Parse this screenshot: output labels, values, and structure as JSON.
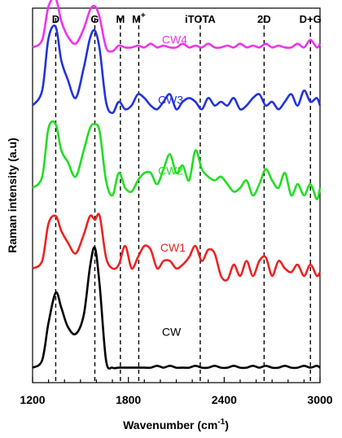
{
  "chart_data": {
    "type": "line",
    "xlabel": "Wavenumber (cm",
    "xlabel_sup": "-1",
    "xlabel_end": ")",
    "ylabel": "Raman intensity (a.u)",
    "xlim": [
      1200,
      3000
    ],
    "xticks": [
      1200,
      1800,
      2400,
      3000
    ],
    "xtick_labels": [
      "1200",
      "1800",
      "2400",
      "3000"
    ],
    "x_minor_step": 100,
    "stacked_offset": true,
    "y_ticks_shown": false,
    "peak_markers": [
      {
        "label": "D",
        "sup": "",
        "x": 1345,
        "bold": true
      },
      {
        "label": "G",
        "sup": "",
        "x": 1590,
        "bold": true
      },
      {
        "label": "M",
        "sup": "",
        "x": 1750,
        "bold": false
      },
      {
        "label": "M",
        "sup": "+",
        "x": 1865,
        "bold": true
      },
      {
        "label": "iTOTA",
        "sup": "",
        "x": 2250,
        "bold": true
      },
      {
        "label": "2D",
        "sup": "",
        "x": 2650,
        "bold": true
      },
      {
        "label": "D+G",
        "sup": "",
        "x": 2940,
        "bold": true
      }
    ],
    "x": [
      1200,
      1260,
      1300,
      1345,
      1380,
      1420,
      1470,
      1520,
      1560,
      1590,
      1620,
      1660,
      1700,
      1740,
      1780,
      1820,
      1860,
      1900,
      1940,
      1980,
      2020,
      2060,
      2100,
      2140,
      2180,
      2220,
      2260,
      2300,
      2340,
      2380,
      2420,
      2460,
      2500,
      2540,
      2580,
      2620,
      2660,
      2700,
      2740,
      2780,
      2820,
      2860,
      2900,
      2940,
      2980,
      3000
    ],
    "series": [
      {
        "name": "CW",
        "color": "#000000",
        "baseline": 0.04,
        "values": [
          0.0,
          0.02,
          0.12,
          0.2,
          0.16,
          0.11,
          0.09,
          0.14,
          0.27,
          0.32,
          0.22,
          0.02,
          0.0,
          0.0,
          0.0,
          0.0,
          0.0,
          0.0,
          0.0,
          0.005,
          0.0,
          0.005,
          0.0,
          0.0,
          0.0,
          0.005,
          0.0,
          0.0,
          0.005,
          0.0,
          0.0,
          0.005,
          0.0,
          0.0,
          0.005,
          0.0,
          0.005,
          0.0,
          0.0,
          0.005,
          0.0,
          0.0,
          0.005,
          0.0,
          0.005,
          0.0
        ]
      },
      {
        "name": "CW1",
        "color": "#ee2222",
        "baseline": 0.305,
        "values": [
          0.0,
          0.02,
          0.12,
          0.14,
          0.1,
          0.07,
          0.04,
          0.09,
          0.14,
          0.13,
          0.14,
          0.03,
          0.0,
          0.01,
          0.06,
          0.0,
          0.03,
          0.06,
          0.05,
          0.0,
          0.02,
          0.02,
          0.0,
          0.01,
          0.03,
          0.06,
          0.02,
          0.05,
          0.04,
          -0.02,
          -0.03,
          0.01,
          -0.02,
          0.02,
          -0.02,
          0.02,
          0.03,
          -0.02,
          0.02,
          0.0,
          -0.01,
          0.01,
          -0.02,
          0.01,
          -0.02,
          -0.01
        ]
      },
      {
        "name": "CW2",
        "color": "#22dd22",
        "baseline": 0.52,
        "values": [
          0.0,
          0.03,
          0.16,
          0.17,
          0.1,
          0.07,
          0.03,
          0.1,
          0.16,
          0.17,
          0.15,
          0.02,
          -0.02,
          0.04,
          0.0,
          -0.01,
          0.02,
          0.04,
          0.04,
          0.01,
          0.05,
          0.09,
          0.04,
          0.06,
          0.02,
          0.1,
          0.05,
          0.03,
          0.02,
          0.03,
          0.01,
          -0.01,
          0.0,
          0.02,
          -0.02,
          0.01,
          0.05,
          0.02,
          0.0,
          0.04,
          -0.02,
          0.01,
          -0.02,
          0.01,
          -0.03,
          0.0
        ]
      },
      {
        "name": "CW3",
        "color": "#2233dd",
        "baseline": 0.74,
        "values": [
          0.0,
          0.04,
          0.18,
          0.21,
          0.12,
          0.07,
          0.02,
          0.1,
          0.18,
          0.2,
          0.15,
          0.01,
          -0.02,
          0.01,
          -0.01,
          0.0,
          0.03,
          0.02,
          0.0,
          -0.01,
          0.01,
          0.03,
          -0.01,
          0.01,
          0.02,
          0.01,
          -0.01,
          0.02,
          0.0,
          0.01,
          0.0,
          0.02,
          -0.01,
          0.0,
          0.02,
          0.03,
          0.0,
          0.01,
          -0.01,
          0.01,
          0.03,
          0.0,
          0.04,
          0.01,
          0.02,
          0.0
        ]
      },
      {
        "name": "CW4",
        "color": "#ee33ee",
        "baseline": 0.895,
        "values": [
          0.0,
          0.02,
          0.11,
          0.13,
          0.07,
          0.03,
          0.01,
          0.05,
          0.1,
          0.11,
          0.08,
          0.0,
          -0.01,
          0.005,
          0.0,
          0.0,
          0.005,
          0.0,
          0.01,
          0.0,
          0.005,
          0.0,
          0.0,
          0.01,
          0.0,
          0.005,
          0.0,
          0.01,
          0.0,
          0.0,
          0.005,
          0.0,
          0.01,
          0.0,
          0.005,
          0.0,
          0.01,
          0.0,
          0.005,
          0.0,
          0.0,
          0.01,
          0.0,
          0.02,
          0.0,
          0.01
        ]
      }
    ]
  }
}
